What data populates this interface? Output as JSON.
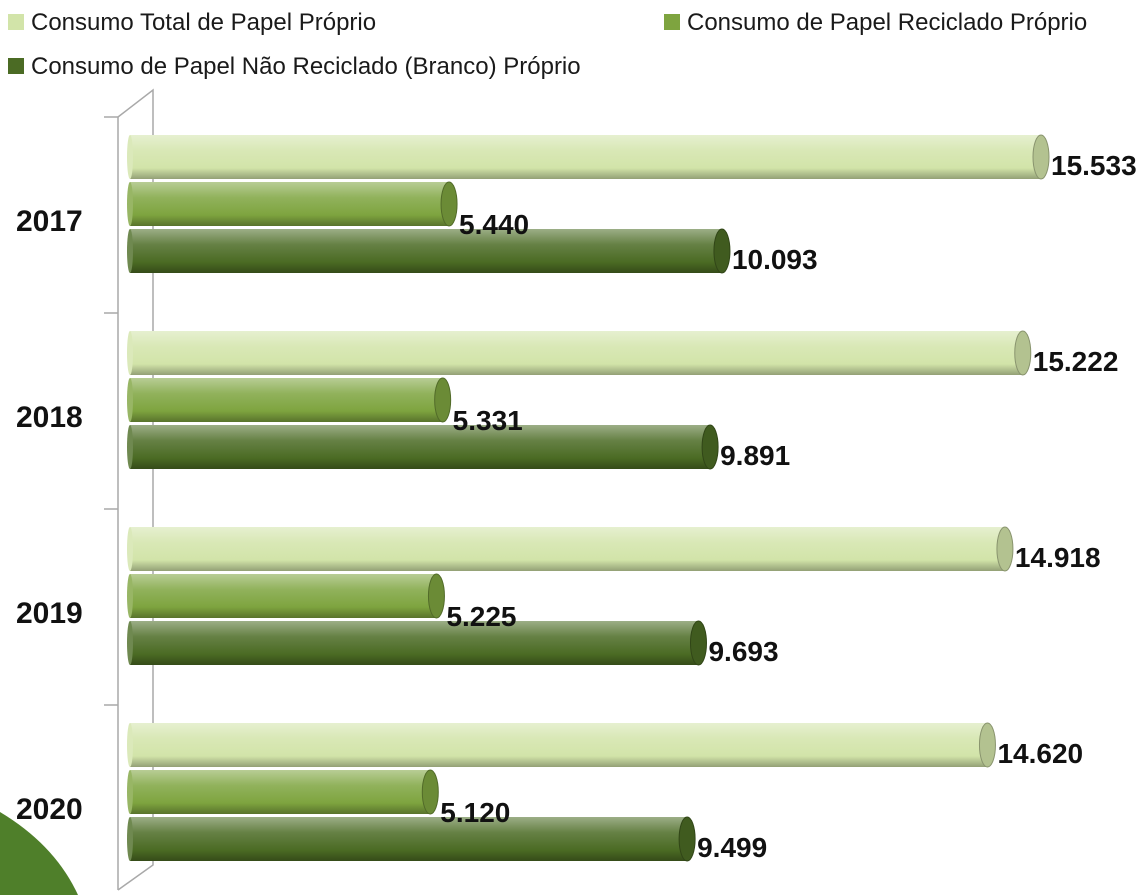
{
  "chart_data": {
    "type": "bar",
    "orientation": "horizontal",
    "categories": [
      "2017",
      "2018",
      "2019",
      "2020"
    ],
    "series": [
      {
        "name": "Consumo Total de Papel Próprio",
        "values": [
          15533,
          15222,
          14918,
          14620
        ],
        "labels": [
          "15.533",
          "15.222",
          "14.918",
          "14.620"
        ],
        "color": "#d2e4a9"
      },
      {
        "name": "Consumo de Papel Reciclado Próprio",
        "values": [
          5440,
          5331,
          5225,
          5120
        ],
        "labels": [
          "5.440",
          "5.331",
          "5.225",
          "5.120"
        ],
        "color": "#7ea43f"
      },
      {
        "name": "Consumo de Papel Não Reciclado (Branco) Próprio",
        "values": [
          10093,
          9891,
          9693,
          9499
        ],
        "labels": [
          "10.093",
          "9.891",
          "9.693",
          "9.499"
        ],
        "color": "#4b6b24"
      }
    ],
    "title": "",
    "xlabel": "",
    "ylabel": "",
    "grid": false,
    "legend_position": "top"
  }
}
